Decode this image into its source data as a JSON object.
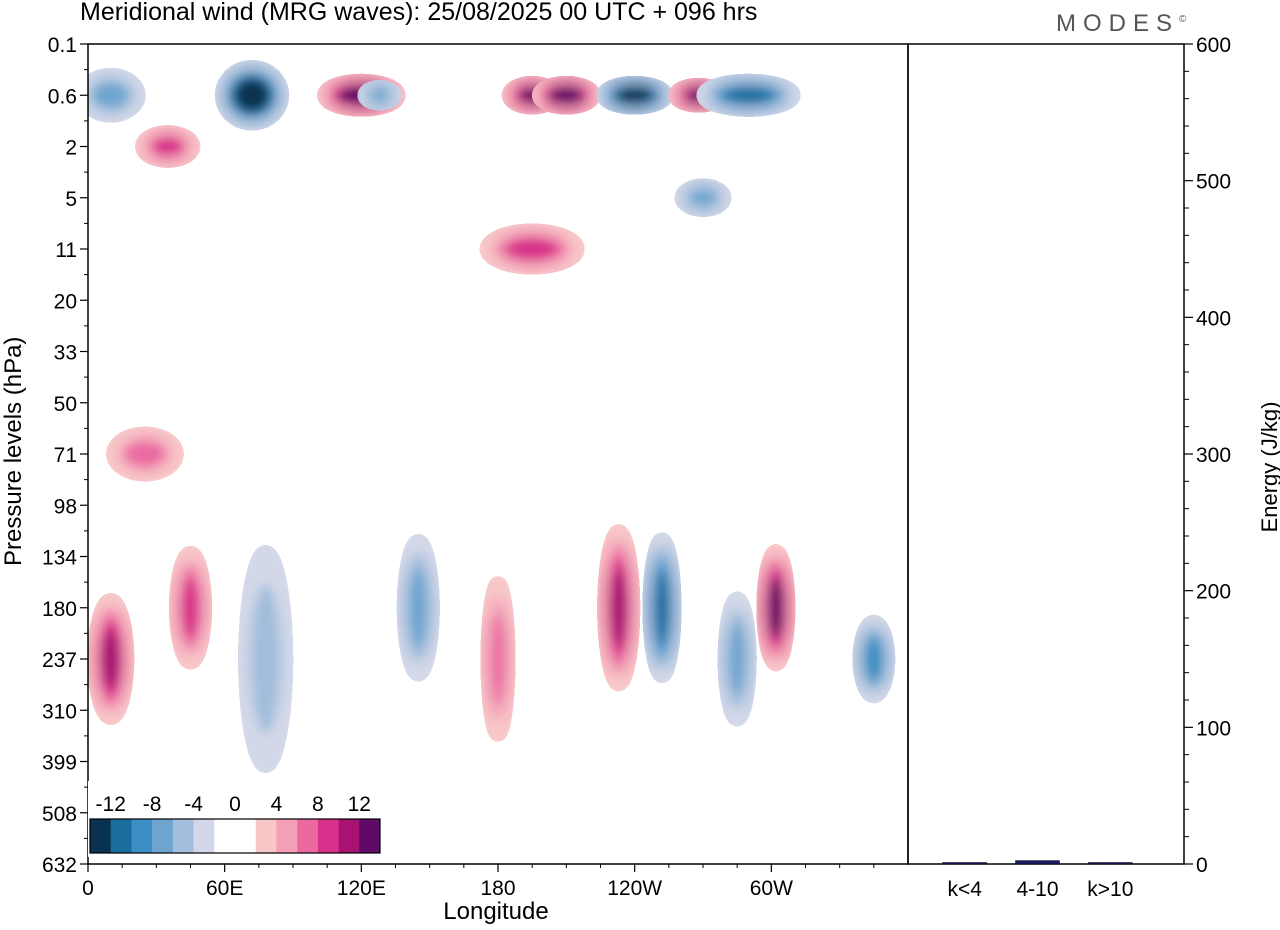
{
  "title": "Meridional wind (MRG waves):  25/08/2025  00 UTC  + 096 hrs",
  "logo": "MODES",
  "logo_mark": "©",
  "chart_data": [
    {
      "type": "heatmap",
      "title": "Meridional wind (MRG waves)",
      "xlabel": "Longitude",
      "ylabel": "Pressure levels (hPa)",
      "x_ticks": [
        "0",
        "60E",
        "120E",
        "180",
        "120W",
        "60W"
      ],
      "y_ticks": [
        "0.1",
        "0.6",
        "2",
        "5",
        "11",
        "20",
        "33",
        "50",
        "71",
        "98",
        "134",
        "180",
        "237",
        "310",
        "399",
        "508",
        "632"
      ],
      "colorbar": {
        "labels": [
          "-12",
          "-8",
          "-4",
          "0",
          "4",
          "8",
          "12"
        ],
        "colors": [
          "#08324f",
          "#1a6e9e",
          "#3b8fc2",
          "#6ea5cf",
          "#a2bedc",
          "#d3d8e8",
          "#ffffff",
          "#ffffff",
          "#f8c8c8",
          "#f3a0b8",
          "#ea6aa0",
          "#d8308a",
          "#a81272",
          "#5e0a66"
        ]
      },
      "features": [
        {
          "lon": 10,
          "level": "0.6",
          "value": -6
        },
        {
          "lon": 72,
          "level": "0.6",
          "value": -14
        },
        {
          "lon": 120,
          "level": "0.6",
          "value": 14
        },
        {
          "lon": 128,
          "level": "0.6",
          "value": -6
        },
        {
          "lon": 195,
          "level": "0.6",
          "value": 12
        },
        {
          "lon": 210,
          "level": "0.6",
          "value": 14
        },
        {
          "lon": 240,
          "level": "0.6",
          "value": -14
        },
        {
          "lon": 268,
          "level": "0.6",
          "value": 12
        },
        {
          "lon": 290,
          "level": "0.6",
          "value": -10
        },
        {
          "lon": 35,
          "level": "2",
          "value": 8
        },
        {
          "lon": 270,
          "level": "5",
          "value": -6
        },
        {
          "lon": 195,
          "level": "11",
          "value": 8
        },
        {
          "lon": 25,
          "level": "71",
          "value": 6
        },
        {
          "lon": 10,
          "level": "237",
          "value": 10
        },
        {
          "lon": 45,
          "level": "180",
          "value": 8
        },
        {
          "lon": 78,
          "level": "237",
          "value": -4
        },
        {
          "lon": 145,
          "level": "180",
          "value": -6
        },
        {
          "lon": 180,
          "level": "237",
          "value": 6
        },
        {
          "lon": 233,
          "level": "180",
          "value": 10
        },
        {
          "lon": 252,
          "level": "180",
          "value": -10
        },
        {
          "lon": 285,
          "level": "237",
          "value": -6
        },
        {
          "lon": 302,
          "level": "180",
          "value": 12
        },
        {
          "lon": 345,
          "level": "237",
          "value": -8
        }
      ]
    },
    {
      "type": "bar",
      "ylabel": "Energy (J/kg)",
      "categories": [
        "k<4",
        "4-10",
        "k>10"
      ],
      "values": [
        0.5,
        2.5,
        0.5
      ],
      "ylim": [
        0,
        600
      ],
      "y_ticks": [
        "0",
        "100",
        "200",
        "300",
        "400",
        "500",
        "600"
      ]
    }
  ]
}
